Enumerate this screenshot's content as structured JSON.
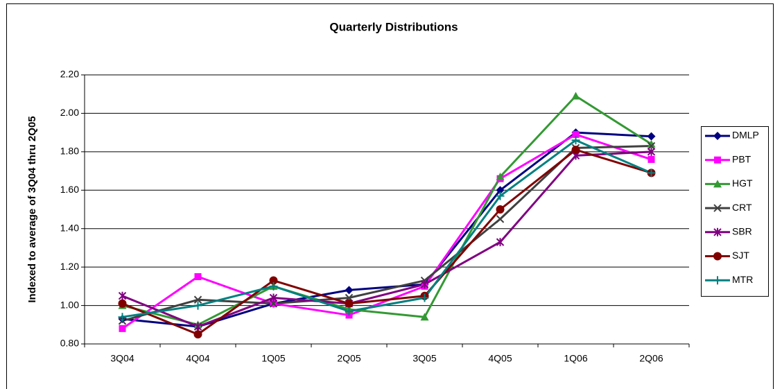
{
  "chart_data": {
    "type": "line",
    "title": "Quarterly Distributions",
    "y_label": "Indexed to average of 3Q04 thru 2Q05",
    "categories": [
      "3Q04",
      "4Q04",
      "1Q05",
      "2Q05",
      "3Q05",
      "4Q05",
      "1Q06",
      "2Q06"
    ],
    "ylim": [
      0.8,
      2.2
    ],
    "yticks": [
      {
        "value": 0.8,
        "label": "0.80"
      },
      {
        "value": 1.0,
        "label": "1.00"
      },
      {
        "value": 1.2,
        "label": "1.20"
      },
      {
        "value": 1.4,
        "label": "1.40"
      },
      {
        "value": 1.6,
        "label": "1.60"
      },
      {
        "value": 1.8,
        "label": "1.80"
      },
      {
        "value": 2.0,
        "label": "2.00"
      },
      {
        "value": 2.2,
        "label": "2.20"
      }
    ],
    "grid": true,
    "legend": "right",
    "series": [
      {
        "name": "DMLP",
        "color": "#000080",
        "marker": "diamond",
        "values": [
          0.93,
          0.89,
          1.01,
          1.08,
          1.11,
          1.6,
          1.9,
          1.88
        ]
      },
      {
        "name": "PBT",
        "color": "#ff00ff",
        "marker": "square",
        "values": [
          0.88,
          1.15,
          1.01,
          0.95,
          1.1,
          1.66,
          1.89,
          1.76
        ]
      },
      {
        "name": "HGT",
        "color": "#339933",
        "marker": "triangle",
        "values": [
          1.0,
          0.9,
          1.1,
          0.98,
          0.94,
          1.67,
          2.09,
          1.84
        ]
      },
      {
        "name": "CRT",
        "color": "#404040",
        "marker": "x",
        "values": [
          0.92,
          1.03,
          1.01,
          1.04,
          1.13,
          1.45,
          1.82,
          1.83
        ]
      },
      {
        "name": "SBR",
        "color": "#800080",
        "marker": "star",
        "values": [
          1.05,
          0.89,
          1.04,
          1.01,
          1.11,
          1.33,
          1.78,
          1.8
        ]
      },
      {
        "name": "SJT",
        "color": "#800000",
        "marker": "circle",
        "values": [
          1.01,
          0.85,
          1.13,
          1.01,
          1.05,
          1.5,
          1.81,
          1.69
        ]
      },
      {
        "name": "MTR",
        "color": "#008080",
        "marker": "plus",
        "values": [
          0.94,
          1.0,
          1.1,
          0.97,
          1.04,
          1.57,
          1.86,
          1.69
        ]
      }
    ]
  }
}
